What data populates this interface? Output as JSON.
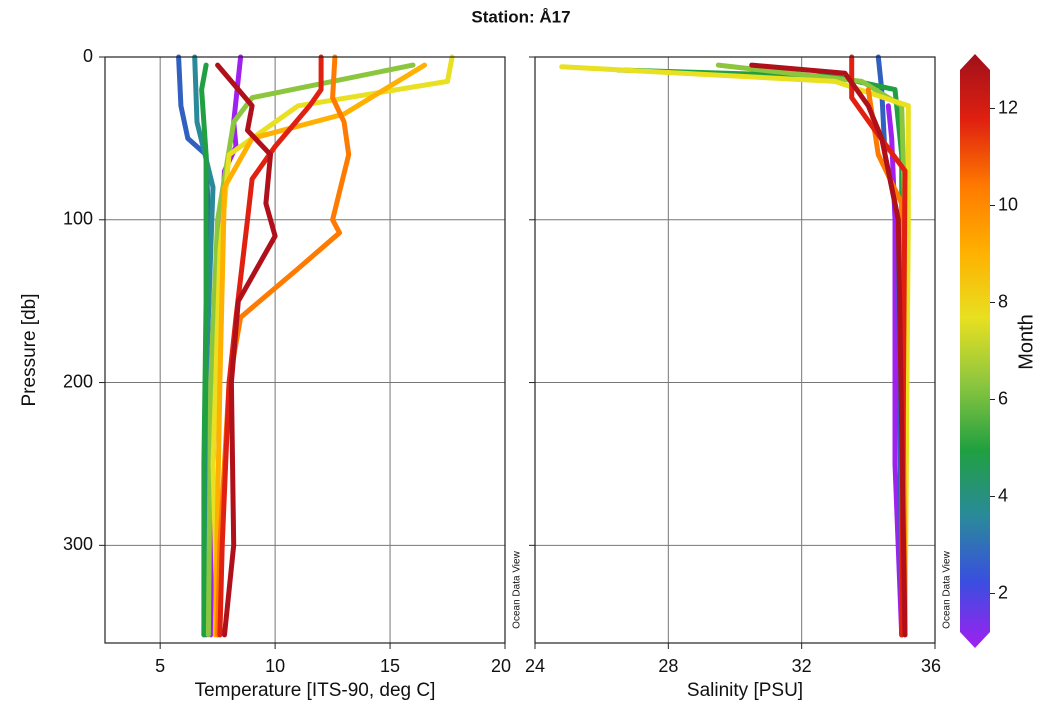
{
  "title": "Station: Å17",
  "colorbar": {
    "label": "Month",
    "lim": [
      1,
      13
    ],
    "ticks": [
      2,
      4,
      6,
      8,
      10,
      12
    ],
    "colors": [
      "#a020f0",
      "#3a4ee0",
      "#2a8a9a",
      "#20a040",
      "#8cc63f",
      "#e8e020",
      "#ffb000",
      "#ff7a00",
      "#e02010",
      "#a0101a"
    ]
  },
  "chart_data": [
    {
      "type": "line",
      "xlabel": "Temperature [ITS-90, deg C]",
      "ylabel": "Pressure [db]",
      "annotation": "Ocean Data View",
      "xlim": [
        2.6,
        20
      ],
      "xticks": [
        5,
        10,
        15,
        20
      ],
      "ylim": [
        0,
        360
      ],
      "yticks": [
        0,
        100,
        200,
        300
      ],
      "y_inverted": true,
      "grid": true,
      "series": [
        {
          "color": "#a020f0",
          "x": [
            8.5,
            8.2,
            8.3,
            7.8,
            7.5,
            7.3,
            7.2
          ],
          "values": [
            0,
            40,
            55,
            70,
            150,
            250,
            355
          ]
        },
        {
          "color": "#3060c0",
          "x": [
            5.8,
            5.9,
            6.2,
            7.0,
            7.1,
            7.0,
            7.0
          ],
          "values": [
            0,
            30,
            50,
            60,
            100,
            200,
            355
          ]
        },
        {
          "color": "#2a8a9a",
          "x": [
            6.5,
            6.6,
            7.3,
            7.0,
            6.9
          ],
          "values": [
            0,
            40,
            80,
            200,
            355
          ]
        },
        {
          "color": "#20a040",
          "x": [
            7.0,
            6.8,
            7.0,
            7.0,
            6.9,
            6.9
          ],
          "values": [
            5,
            20,
            60,
            150,
            250,
            355
          ]
        },
        {
          "color": "#8cc63f",
          "x": [
            16,
            9,
            8.2,
            7.5,
            7.2,
            7.1
          ],
          "values": [
            5,
            25,
            40,
            100,
            200,
            355
          ]
        },
        {
          "color": "#e8e020",
          "x": [
            17.7,
            17.5,
            11,
            8,
            7.6,
            7.3,
            7.5
          ],
          "values": [
            0,
            15,
            30,
            60,
            120,
            250,
            355
          ]
        },
        {
          "color": "#ffb000",
          "x": [
            16.5,
            13,
            9,
            7.8,
            7.6,
            7.4
          ],
          "values": [
            5,
            35,
            50,
            80,
            200,
            355
          ]
        },
        {
          "color": "#ff7a00",
          "x": [
            12.6,
            12.5,
            13,
            13.2,
            12.5,
            12.8,
            11,
            8.5,
            8,
            7.6,
            7.5
          ],
          "values": [
            0,
            25,
            40,
            60,
            100,
            108,
            130,
            160,
            200,
            300,
            355
          ]
        },
        {
          "color": "#e02010",
          "x": [
            12.0,
            12.0,
            11.5,
            10,
            9,
            8.8,
            8.3,
            8,
            7.7,
            7.6
          ],
          "values": [
            0,
            20,
            30,
            55,
            75,
            100,
            160,
            200,
            300,
            355
          ]
        },
        {
          "color": "#b0101a",
          "x": [
            7.5,
            9,
            8.8,
            9.8,
            9.6,
            10,
            8.4,
            8.1,
            8.2,
            7.8
          ],
          "values": [
            5,
            30,
            45,
            60,
            90,
            110,
            150,
            200,
            300,
            355
          ]
        }
      ]
    },
    {
      "type": "line",
      "xlabel": "Salinity [PSU]",
      "annotation": "Ocean Data View",
      "xlim": [
        24,
        36
      ],
      "xticks": [
        24,
        28,
        32,
        36
      ],
      "ylim": [
        0,
        360
      ],
      "yticks": [
        0,
        100,
        200,
        300
      ],
      "y_inverted": true,
      "grid": true,
      "series": [
        {
          "color": "#a020f0",
          "x": [
            34.6,
            34.7,
            34.8,
            34.8,
            35.0
          ],
          "values": [
            30,
            50,
            100,
            250,
            355
          ]
        },
        {
          "color": "#3060c0",
          "x": [
            34.3,
            34.4,
            34.5,
            34.9,
            35.0
          ],
          "values": [
            0,
            20,
            60,
            100,
            355
          ]
        },
        {
          "color": "#20a040",
          "x": [
            26.5,
            33,
            34.8,
            35.0,
            35.0
          ],
          "values": [
            8,
            12,
            20,
            60,
            355
          ]
        },
        {
          "color": "#8cc63f",
          "x": [
            29.5,
            33.8,
            35,
            35.1,
            35.1
          ],
          "values": [
            5,
            15,
            30,
            100,
            355
          ]
        },
        {
          "color": "#e8e020",
          "x": [
            24.8,
            33,
            35.2,
            35.2,
            35.1
          ],
          "values": [
            6,
            15,
            30,
            100,
            355
          ]
        },
        {
          "color": "#ff7a00",
          "x": [
            34,
            34.3,
            35,
            35.1
          ],
          "values": [
            20,
            60,
            90,
            355
          ]
        },
        {
          "color": "#e02010",
          "x": [
            33.5,
            33.5,
            34.2,
            35.1,
            35.0
          ],
          "values": [
            0,
            25,
            45,
            70,
            355
          ]
        },
        {
          "color": "#b0101a",
          "x": [
            30.5,
            33.3,
            34,
            34.4,
            34.9,
            35.1
          ],
          "values": [
            5,
            10,
            30,
            50,
            100,
            355
          ]
        }
      ]
    }
  ]
}
